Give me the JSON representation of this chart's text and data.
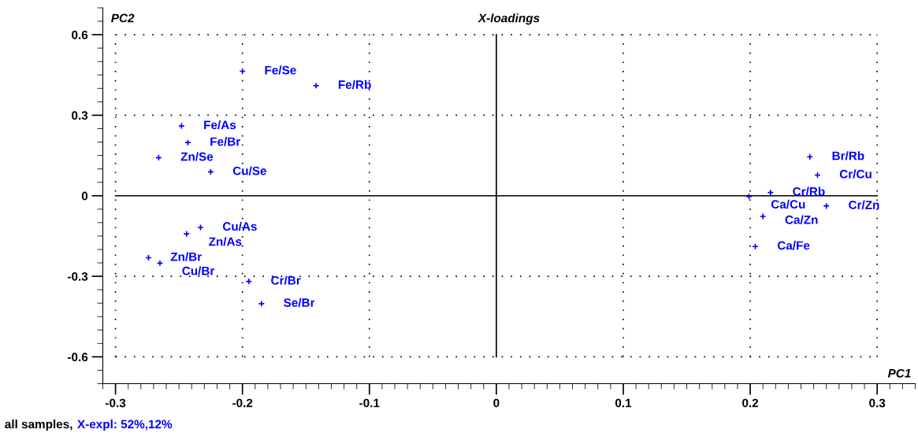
{
  "chart_data": {
    "type": "scatter",
    "title": "X-loadings",
    "xlabel": "PC1",
    "ylabel": "PC2",
    "xlim": [
      -0.31,
      0.33
    ],
    "ylim": [
      -0.7,
      0.7
    ],
    "xticks": [
      -0.3,
      -0.2,
      -0.1,
      0,
      0.1,
      0.2,
      0.3
    ],
    "yticks": [
      -0.6,
      -0.3,
      0,
      0.3,
      0.6
    ],
    "grid": true,
    "marker": "cross",
    "series": [
      {
        "color": "#0000ff",
        "x": [
          -0.2,
          -0.142,
          -0.248,
          -0.243,
          -0.266,
          -0.225,
          -0.233,
          -0.244,
          -0.274,
          -0.265,
          -0.195,
          -0.185,
          0.247,
          0.253,
          0.216,
          0.199,
          0.26,
          0.21,
          0.204
        ],
        "values": [
          0.464,
          0.41,
          0.26,
          0.198,
          0.142,
          0.089,
          -0.118,
          -0.142,
          -0.231,
          -0.251,
          -0.319,
          -0.402,
          0.145,
          0.077,
          0.012,
          -0.003,
          -0.038,
          -0.077,
          -0.189
        ]
      }
    ],
    "annotations": [
      {
        "text": "Fe/Se",
        "x": -0.2,
        "y": 0.464
      },
      {
        "text": "Fe/Rb",
        "x": -0.142,
        "y": 0.41
      },
      {
        "text": "Fe/As",
        "x": -0.248,
        "y": 0.26
      },
      {
        "text": "Fe/Br",
        "x": -0.243,
        "y": 0.198
      },
      {
        "text": "Zn/Se",
        "x": -0.266,
        "y": 0.142
      },
      {
        "text": "Cu/Se",
        "x": -0.225,
        "y": 0.089
      },
      {
        "text": "Cu/As",
        "x": -0.233,
        "y": -0.118
      },
      {
        "text": "Zn/As",
        "x": -0.244,
        "y": -0.142
      },
      {
        "text": "Zn/Br",
        "x": -0.274,
        "y": -0.231
      },
      {
        "text": "Cu/Br",
        "x": -0.265,
        "y": -0.251
      },
      {
        "text": "Cr/Br",
        "x": -0.195,
        "y": -0.319
      },
      {
        "text": "Se/Br",
        "x": -0.185,
        "y": -0.402
      },
      {
        "text": "Br/Rb",
        "x": 0.247,
        "y": 0.145
      },
      {
        "text": "Cr/Cu",
        "x": 0.253,
        "y": 0.077
      },
      {
        "text": "Cr/Rb",
        "x": 0.216,
        "y": 0.012
      },
      {
        "text": "Ca/Cu",
        "x": 0.199,
        "y": -0.003
      },
      {
        "text": "Cr/Zn",
        "x": 0.26,
        "y": -0.038
      },
      {
        "text": "Ca/Zn",
        "x": 0.21,
        "y": -0.077
      },
      {
        "text": "Ca/Fe",
        "x": 0.204,
        "y": -0.189
      },
      "all samples,",
      "X-expl: 52%,12%"
    ]
  }
}
